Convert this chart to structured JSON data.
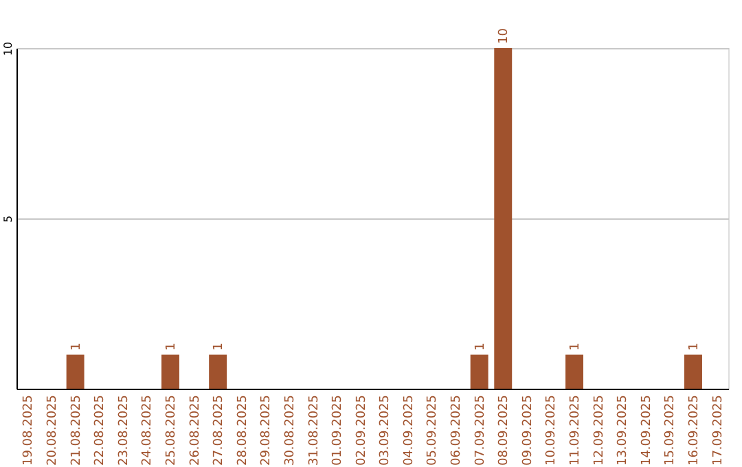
{
  "chart_data": {
    "type": "bar",
    "categories": [
      "19.08.2025",
      "20.08.2025",
      "21.08.2025",
      "22.08.2025",
      "23.08.2025",
      "24.08.2025",
      "25.08.2025",
      "26.08.2025",
      "27.08.2025",
      "28.08.2025",
      "29.08.2025",
      "30.08.2025",
      "31.08.2025",
      "01.09.2025",
      "02.09.2025",
      "03.09.2025",
      "04.09.2025",
      "05.09.2025",
      "06.09.2025",
      "07.09.2025",
      "08.09.2025",
      "09.09.2025",
      "10.09.2025",
      "11.09.2025",
      "12.09.2025",
      "13.09.2025",
      "14.09.2025",
      "15.09.2025",
      "16.09.2025",
      "17.09.2025"
    ],
    "values": [
      0,
      0,
      1,
      0,
      0,
      0,
      1,
      0,
      1,
      0,
      0,
      0,
      0,
      0,
      0,
      0,
      0,
      0,
      0,
      1,
      10,
      0,
      0,
      1,
      0,
      0,
      0,
      0,
      1,
      0
    ],
    "value_labels": [
      null,
      null,
      "1",
      null,
      null,
      null,
      "1",
      null,
      "1",
      null,
      null,
      null,
      null,
      null,
      null,
      null,
      null,
      null,
      null,
      "1",
      "10",
      null,
      null,
      "1",
      null,
      null,
      null,
      null,
      "1",
      null
    ],
    "color": "#a0522d",
    "ylim": [
      0,
      10
    ],
    "yticks": [
      5,
      10
    ],
    "grid": "y"
  }
}
